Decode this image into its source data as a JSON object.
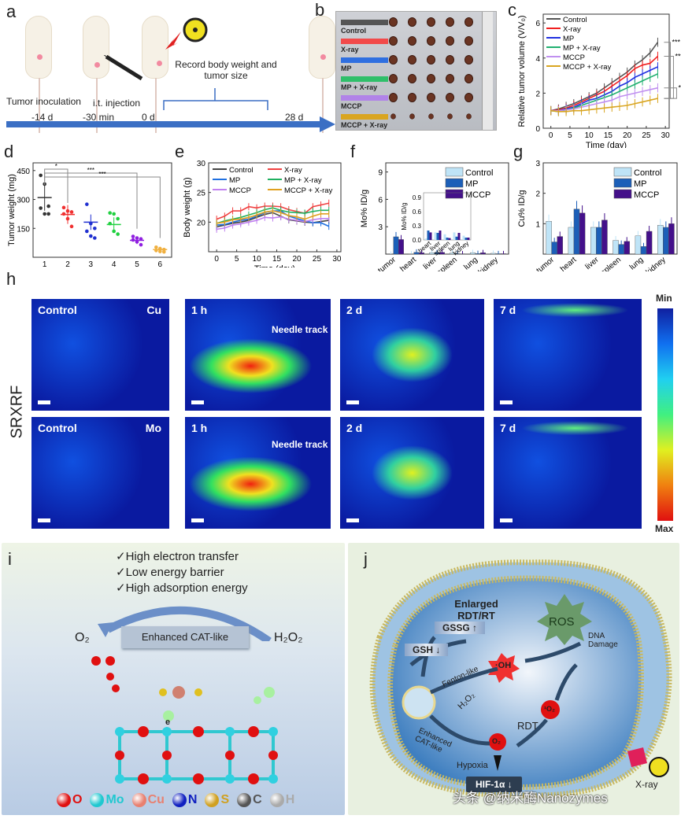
{
  "panel_labels": {
    "a": "a",
    "b": "b",
    "c": "c",
    "d": "d",
    "e": "e",
    "f": "f",
    "g": "g",
    "h": "h",
    "i": "i",
    "j": "j"
  },
  "a": {
    "steps": [
      "Tumor inoculation",
      "i.t. injection"
    ],
    "times": [
      "-14 d",
      "-30 min",
      "0 d",
      "28 d"
    ],
    "record": "Record body weight and tumor size",
    "colors": {
      "arrow": "#3b6fc4"
    }
  },
  "b": {
    "groups": [
      {
        "label": "Control",
        "color": "#555555"
      },
      {
        "label": "X-ray",
        "color": "#f24a4a"
      },
      {
        "label": "MP",
        "color": "#2f6fe0"
      },
      {
        "label": "MP + X-ray",
        "color": "#2fbf6a"
      },
      {
        "label": "MCCP",
        "color": "#b183e8"
      },
      {
        "label": "MCCP + X-ray",
        "color": "#d9a520"
      }
    ]
  },
  "chart_data": [
    {
      "id": "c",
      "type": "line",
      "xlabel": "Time (day)",
      "ylabel": "Relative tumor volume (V/V₀)",
      "xlim": [
        -2,
        31
      ],
      "ylim": [
        0,
        6.5
      ],
      "xticks": [
        0,
        5,
        10,
        15,
        20,
        25,
        30
      ],
      "yticks": [
        0,
        2,
        4,
        6
      ],
      "legend": "top-left",
      "x": [
        0,
        2,
        4,
        6,
        8,
        10,
        12,
        14,
        16,
        18,
        20,
        22,
        24,
        26,
        28
      ],
      "series": [
        {
          "name": "Control",
          "color": "#555555",
          "values": [
            1,
            1.1,
            1.25,
            1.4,
            1.6,
            1.8,
            2.0,
            2.3,
            2.6,
            2.9,
            3.2,
            3.6,
            3.9,
            4.3,
            4.9
          ]
        },
        {
          "name": "X-ray",
          "color": "#f02020",
          "values": [
            1,
            1.05,
            1.15,
            1.3,
            1.5,
            1.7,
            1.9,
            2.1,
            2.4,
            2.7,
            3.0,
            3.4,
            3.6,
            3.7,
            4.1
          ]
        },
        {
          "name": "MP",
          "color": "#2030e0",
          "values": [
            1,
            1.0,
            1.1,
            1.2,
            1.4,
            1.6,
            1.7,
            1.9,
            2.1,
            2.4,
            2.6,
            2.9,
            3.1,
            3.3,
            3.5
          ]
        },
        {
          "name": "MP + X-ray",
          "color": "#20b070",
          "values": [
            1,
            0.95,
            1.05,
            1.15,
            1.3,
            1.45,
            1.6,
            1.75,
            1.9,
            2.1,
            2.3,
            2.5,
            2.7,
            2.9,
            3.1
          ]
        },
        {
          "name": "MCCP",
          "color": "#c090f0",
          "values": [
            1,
            1.0,
            1.05,
            1.1,
            1.2,
            1.3,
            1.4,
            1.5,
            1.6,
            1.8,
            1.9,
            2.0,
            2.1,
            2.2,
            2.3
          ]
        },
        {
          "name": "MCCP + X-ray",
          "color": "#d9a520",
          "values": [
            1,
            0.95,
            0.95,
            1.0,
            1.0,
            1.05,
            1.1,
            1.15,
            1.2,
            1.25,
            1.3,
            1.4,
            1.5,
            1.6,
            1.7
          ]
        }
      ],
      "significance": [
        "***",
        "***",
        "*"
      ]
    },
    {
      "id": "d",
      "type": "scatter",
      "ylabel": "Tumor weight (mg)",
      "categories": [
        "1",
        "2",
        "3",
        "4",
        "5",
        "6"
      ],
      "ylim": [
        0,
        490
      ],
      "yticks": [
        150,
        300,
        450
      ],
      "colors": [
        "#333333",
        "#f03030",
        "#2030d0",
        "#20d040",
        "#9020e0",
        "#f0b040"
      ],
      "means": [
        310,
        222,
        182,
        170,
        88,
        40
      ],
      "points": [
        [
          425,
          380,
          265,
          255,
          225,
          225
        ],
        [
          258,
          240,
          235,
          225,
          200,
          160
        ],
        [
          275,
          175,
          150,
          135,
          110,
          100
        ],
        [
          230,
          225,
          200,
          175,
          135,
          120
        ],
        [
          108,
          100,
          95,
          90,
          80,
          65
        ],
        [
          52,
          45,
          40,
          35,
          30,
          28
        ]
      ],
      "significance": [
        {
          "pair": [
            1,
            2
          ],
          "label": "*"
        },
        {
          "pair": [
            1,
            5
          ],
          "label": "***"
        },
        {
          "pair": [
            1,
            6
          ],
          "label": "***"
        }
      ]
    },
    {
      "id": "e",
      "type": "line",
      "xlabel": "Time (day)",
      "ylabel": "Body weight (g)",
      "xlim": [
        -2,
        31
      ],
      "ylim": [
        15,
        30
      ],
      "xticks": [
        0,
        5,
        10,
        15,
        20,
        25,
        30
      ],
      "yticks": [
        20,
        25,
        30
      ],
      "legend": "top",
      "x": [
        0,
        2,
        4,
        6,
        8,
        10,
        12,
        14,
        16,
        18,
        20,
        22,
        24,
        26,
        28
      ],
      "series": [
        {
          "name": "Control",
          "color": "#444444",
          "values": [
            19.2,
            19.5,
            19.8,
            20.0,
            20.3,
            20.8,
            21.3,
            21.6,
            21.0,
            20.4,
            20.2,
            20.0,
            19.9,
            20.1,
            20.3
          ]
        },
        {
          "name": "X-ray",
          "color": "#f04040",
          "values": [
            20.5,
            21.0,
            21.9,
            21.9,
            22.6,
            22.4,
            22.7,
            22.7,
            22.6,
            22.1,
            21.8,
            21.5,
            22.6,
            22.9,
            23.2
          ]
        },
        {
          "name": "MP",
          "color": "#2070e0",
          "values": [
            19.5,
            19.6,
            20.0,
            20.3,
            20.5,
            21.0,
            21.6,
            21.9,
            21.9,
            21.0,
            20.6,
            20.2,
            19.9,
            19.9,
            19.3
          ]
        },
        {
          "name": "MP + X-ray",
          "color": "#20b060",
          "values": [
            19.8,
            20.2,
            20.5,
            20.8,
            21.2,
            21.6,
            22.1,
            22.4,
            22.0,
            21.7,
            21.6,
            21.5,
            21.8,
            22.0,
            22.0
          ]
        },
        {
          "name": "MCCP",
          "color": "#c080f0",
          "values": [
            18.8,
            19.0,
            19.5,
            19.7,
            20.0,
            20.3,
            20.8,
            20.7,
            20.9,
            20.5,
            20.3,
            20.1,
            20.4,
            20.6,
            20.6
          ]
        },
        {
          "name": "MCCP + X-ray",
          "color": "#e0a020",
          "values": [
            19.8,
            20.0,
            20.4,
            20.5,
            20.8,
            21.2,
            21.7,
            21.9,
            21.6,
            21.1,
            20.9,
            20.5,
            21.0,
            21.4,
            21.4
          ]
        }
      ]
    },
    {
      "id": "f",
      "type": "bar",
      "ylabel": "Mo% ID/g",
      "categories": [
        "tumor",
        "heart",
        "liver",
        "spleen",
        "lung",
        "kidney"
      ],
      "ylim": [
        0,
        10
      ],
      "yticks": [
        3,
        6,
        9
      ],
      "legend": "top-right",
      "series": [
        {
          "name": "Control",
          "color": "#bfe4f7",
          "values": [
            0,
            0.03,
            0.16,
            0.12,
            0.16,
            0.09
          ]
        },
        {
          "name": "MP",
          "color": "#1c5fb8",
          "values": [
            1.9,
            0.2,
            0.15,
            0.05,
            0.07,
            0.05
          ]
        },
        {
          "name": "MCCP",
          "color": "#44108a",
          "values": [
            1.6,
            0.16,
            0.2,
            0.04,
            0.15,
            0.05
          ]
        }
      ],
      "inset": {
        "ylabel": "Mo% ID/g",
        "categories": [
          "heart",
          "liver",
          "spleen",
          "lung",
          "kidney"
        ],
        "ylim": [
          0,
          1.0
        ],
        "yticks": [
          "0.0",
          "0.3",
          "0.6",
          "0.9"
        ]
      }
    },
    {
      "id": "g",
      "type": "bar",
      "ylabel": "Cu% ID/g",
      "categories": [
        "tumor",
        "heart",
        "liver",
        "spleen",
        "lung",
        "kidney"
      ],
      "ylim": [
        0,
        3
      ],
      "yticks": [
        1,
        2,
        3
      ],
      "legend": "top-right",
      "series": [
        {
          "name": "Control",
          "color": "#bfe4f7",
          "values": [
            1.08,
            0.88,
            0.88,
            0.45,
            0.6,
            0.95
          ]
        },
        {
          "name": "MP",
          "color": "#1c5fb8",
          "values": [
            0.4,
            1.48,
            0.88,
            0.32,
            0.25,
            0.88
          ]
        },
        {
          "name": "MCCP",
          "color": "#44108a",
          "values": [
            0.58,
            1.35,
            1.12,
            0.42,
            0.75,
            1.0
          ]
        }
      ]
    }
  ],
  "h": {
    "ylabel": "SRXRF",
    "rows": [
      {
        "element": "Cu",
        "labels": [
          "Control",
          "1 h",
          "2 d",
          "7 d"
        ]
      },
      {
        "element": "Mo",
        "labels": [
          "Control",
          "1 h",
          "2 d",
          "7 d"
        ]
      }
    ],
    "needle": "Needle track",
    "colorbar": {
      "min": "Min",
      "max": "Max"
    }
  },
  "i": {
    "checks": [
      "✓High electron transfer",
      "✓Low energy barrier",
      "✓High adsorption energy"
    ],
    "o2": "O₂",
    "h2o2": "H₂O₂",
    "box": "Enhanced CAT-like",
    "electron": "e",
    "legend": [
      {
        "sym": "O",
        "color": "#e01010"
      },
      {
        "sym": "Mo",
        "color": "#20c8d0"
      },
      {
        "sym": "Cu",
        "color": "#e88070"
      },
      {
        "sym": "N",
        "color": "#1020c0"
      },
      {
        "sym": "S",
        "color": "#d0a020"
      },
      {
        "sym": "C",
        "color": "#555555"
      },
      {
        "sym": "H",
        "color": "#aaaaaa"
      }
    ]
  },
  "j": {
    "enlarged": "Enlarged RDT/RT",
    "ros": "ROS",
    "gssg": "GSSG ↑",
    "gsh": "GSH ↓",
    "fenton": "Fenton-like",
    "oh": "·OH",
    "dna": "DNA Damage",
    "h2o2": "H₂O₂",
    "rdt": "RDT",
    "singlet": "¹O₂",
    "o2": "O₂",
    "cat": "Enhanced CAT-like",
    "hypoxia": "Hypoxia",
    "hif": "HIF-1α ↓",
    "xray": "X-ray"
  },
  "watermark": "头条 @纳米酶Nanozymes"
}
